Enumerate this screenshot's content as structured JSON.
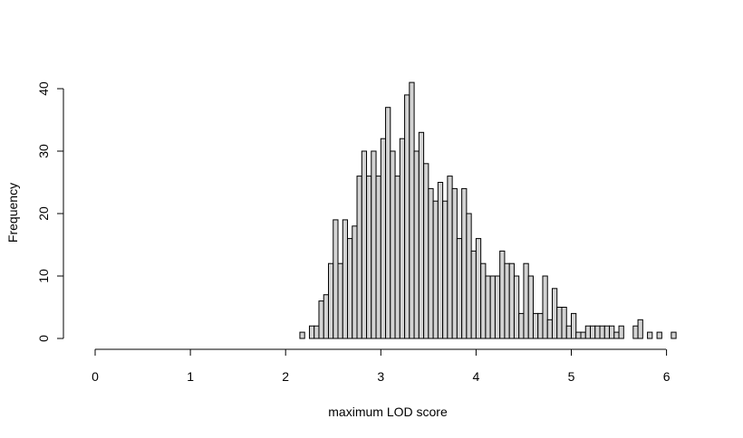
{
  "chart_data": {
    "type": "bar",
    "title": "",
    "xlabel": "maximum LOD score",
    "ylabel": "Frequency",
    "xlim": [
      0,
      6.2
    ],
    "ylim": [
      0,
      40
    ],
    "x_ticks": [
      0,
      1,
      2,
      3,
      4,
      5,
      6
    ],
    "y_ticks": [
      0,
      10,
      20,
      30,
      40
    ],
    "bin_width": 0.05,
    "bin_start": 2.15,
    "values": [
      1,
      0,
      2,
      2,
      6,
      7,
      12,
      19,
      12,
      19,
      16,
      18,
      26,
      30,
      26,
      30,
      26,
      32,
      37,
      30,
      26,
      32,
      39,
      41,
      30,
      33,
      28,
      24,
      22,
      25,
      22,
      26,
      24,
      16,
      24,
      20,
      14,
      16,
      12,
      10,
      10,
      10,
      14,
      12,
      12,
      10,
      4,
      12,
      10,
      4,
      4,
      10,
      3,
      8,
      5,
      5,
      2,
      4,
      1,
      1,
      2,
      2,
      2,
      2,
      2,
      2,
      1,
      2,
      0,
      0,
      2,
      3,
      0,
      1,
      0,
      1,
      0,
      0,
      1
    ]
  }
}
